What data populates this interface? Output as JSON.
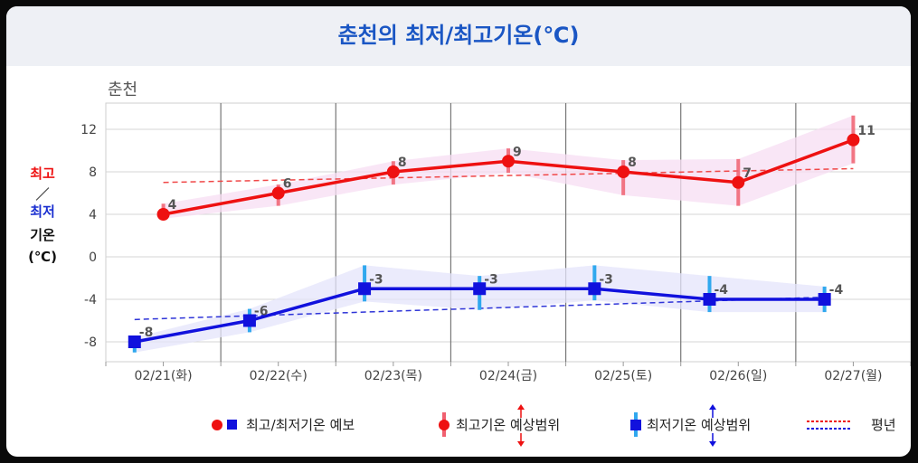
{
  "title": "춘천의 최저/최고기온(℃)",
  "chart_data": {
    "type": "line",
    "title": "춘천",
    "ylabel": {
      "line1": "최고",
      "sep": "／",
      "line2": "최저",
      "line3": "기온",
      "unit": "(℃)"
    },
    "categories": [
      "02/21(화)",
      "02/22(수)",
      "02/23(목)",
      "02/24(금)",
      "02/25(토)",
      "02/26(일)",
      "02/27(월)"
    ],
    "ylim": [
      -10,
      14
    ],
    "yticks": [
      12,
      8,
      4,
      0,
      -4,
      -8
    ],
    "grid": true,
    "colors": {
      "max": "#ee1111",
      "min": "#1111dd",
      "max_range": "#f06070",
      "min_range": "#30a8ee",
      "max_band": "#f7ddf3",
      "min_band": "#e4e4fb"
    },
    "series": [
      {
        "name": "최고기온",
        "x": [
          0.5,
          1.5,
          2.5,
          3.5,
          4.5,
          5.5,
          6.5
        ],
        "values": [
          4,
          6,
          8,
          9,
          8,
          7,
          11
        ],
        "range_low": [
          3.6,
          4.8,
          6.8,
          7.9,
          5.8,
          4.8,
          8.8
        ],
        "range_high": [
          5,
          6.8,
          9,
          10.2,
          9.1,
          9.2,
          13.3
        ],
        "normal": [
          7,
          7.2,
          7.4,
          7.8,
          7.9,
          8.1,
          8.3
        ]
      },
      {
        "name": "최저기온",
        "x": [
          0.25,
          1.25,
          2.25,
          3.25,
          4.25,
          5.25,
          6.25
        ],
        "values": [
          -8,
          -6,
          -3,
          -3,
          -3,
          -4,
          -4
        ],
        "range_low": [
          -9,
          -7.1,
          -4.2,
          -5,
          -4.1,
          -5.2,
          -5.2
        ],
        "range_high": [
          -7.6,
          -4.9,
          -0.8,
          -1.8,
          -0.8,
          -1.8,
          -2.8
        ],
        "normal": [
          -5.9,
          -5.5,
          -5.2,
          -4.9,
          -4.6,
          -4.2,
          -3.8
        ]
      }
    ],
    "legend": [
      {
        "label": "최고/최저기온 예보"
      },
      {
        "label": "최고기온 예상범위"
      },
      {
        "label": "최저기온 예상범위"
      },
      {
        "label": "평년"
      }
    ]
  }
}
